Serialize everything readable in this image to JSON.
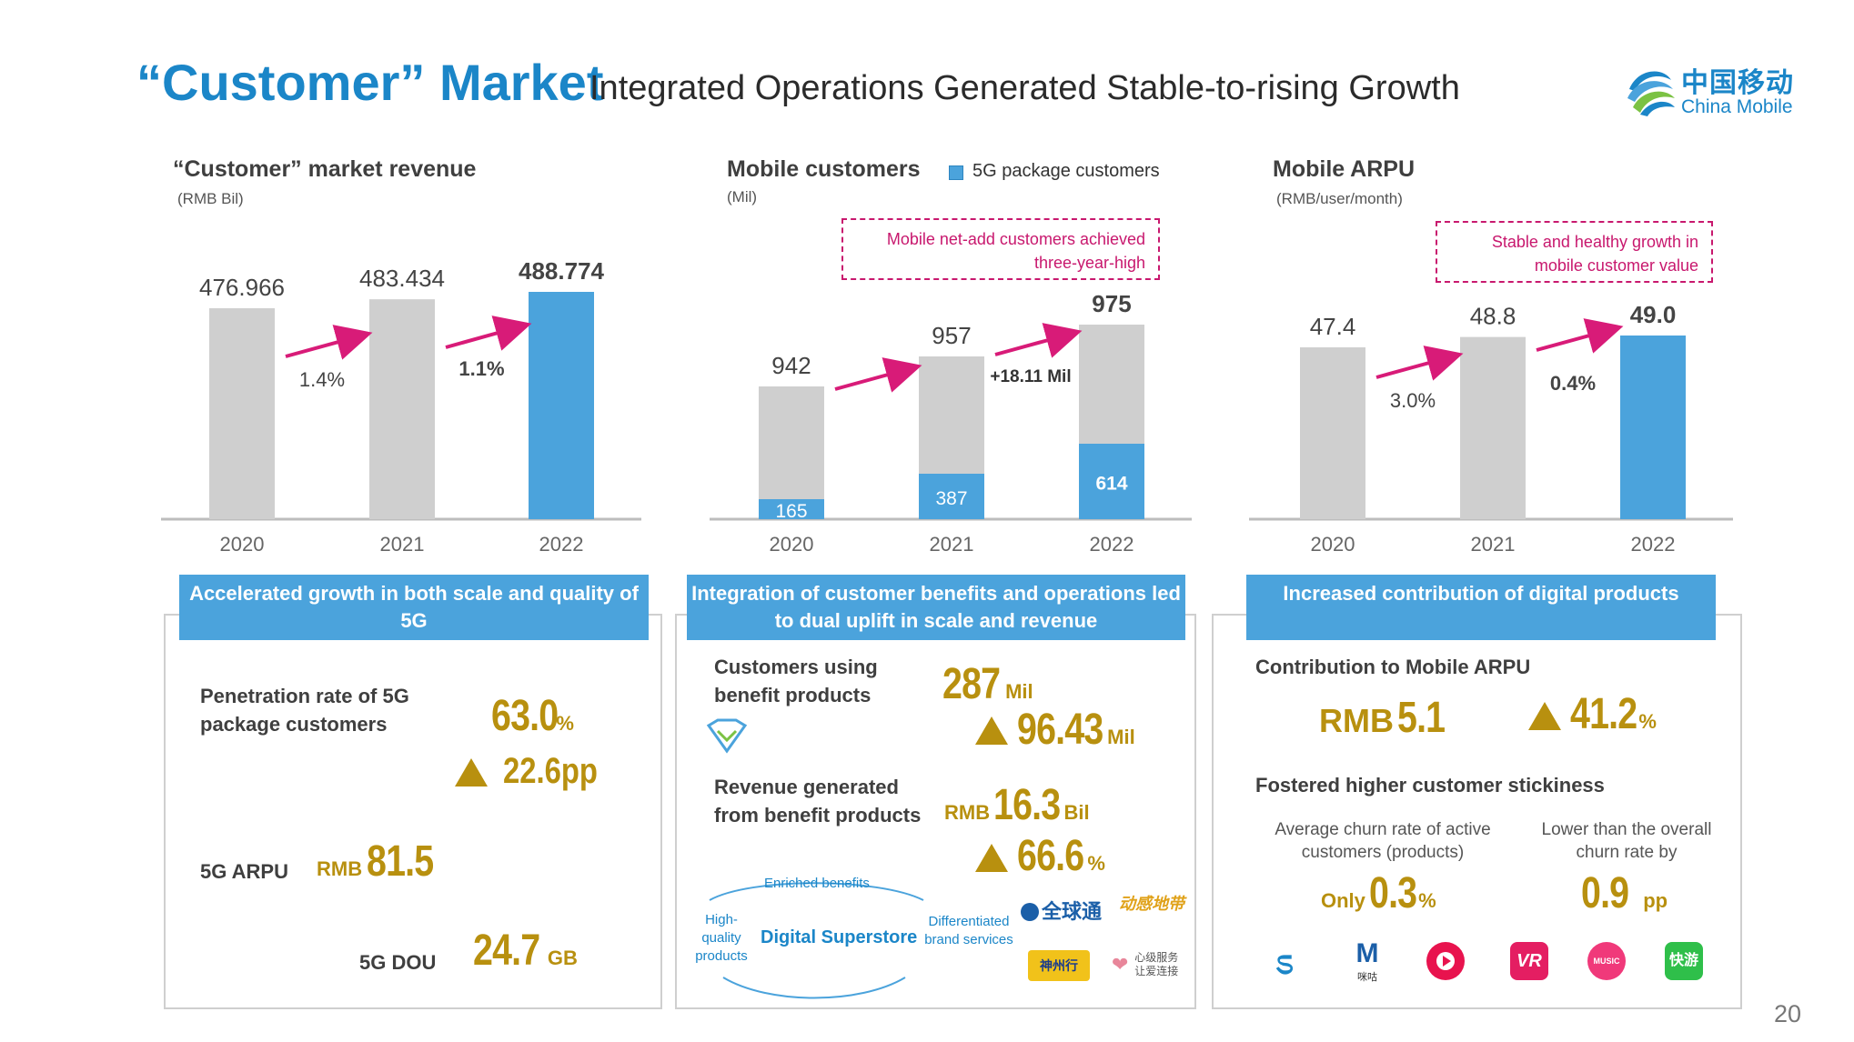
{
  "header": {
    "title_main": "“Customer” Market",
    "title_sub": "Integrated Operations Generated Stable-to-rising Growth",
    "logo_cn": "中国移动",
    "logo_en": "China Mobile"
  },
  "chart_data": [
    {
      "type": "bar",
      "title": "“Customer” market revenue",
      "unit": "(RMB Bil)",
      "categories": [
        "2020",
        "2021",
        "2022"
      ],
      "values": [
        476.966,
        483.434,
        488.774
      ],
      "value_labels": [
        "476.966",
        "483.434",
        "488.774"
      ],
      "growth_labels": [
        "1.4%",
        "1.1%"
      ],
      "highlight_index": 2
    },
    {
      "type": "bar",
      "title": "Mobile customers",
      "unit": "(Mil)",
      "legend": "5G package customers",
      "categories": [
        "2020",
        "2021",
        "2022"
      ],
      "series": [
        {
          "name": "Mobile customers",
          "values": [
            942,
            957,
            975
          ],
          "labels": [
            "942",
            "957",
            "975"
          ]
        },
        {
          "name": "5G package customers",
          "values": [
            165,
            387,
            614
          ],
          "labels": [
            "165",
            "387",
            "614"
          ]
        }
      ],
      "annotation": "+18.11 Mil",
      "callout": "Mobile net-add customers achieved three-year-high"
    },
    {
      "type": "bar",
      "title": "Mobile ARPU",
      "unit": "(RMB/user/month)",
      "categories": [
        "2020",
        "2021",
        "2022"
      ],
      "values": [
        47.4,
        48.8,
        49.0
      ],
      "value_labels": [
        "47.4",
        "48.8",
        "49.0"
      ],
      "growth_labels": [
        "3.0%",
        "0.4%"
      ],
      "highlight_index": 2,
      "callout": "Stable and healthy growth in mobile customer value"
    }
  ],
  "panel1": {
    "banner": "Accelerated growth in both scale and quality of 5G",
    "pen_label": "Penetration rate of 5G package customers",
    "pen_value": "63.0",
    "pen_unit": "%",
    "pen_growth": "22.6pp",
    "arpu_label": "5G ARPU",
    "arpu_prefix": "RMB",
    "arpu_value": "81.5",
    "dou_label": "5G DOU",
    "dou_value": "24.7",
    "dou_unit": "GB"
  },
  "panel2": {
    "banner": "Integration of customer benefits and operations led to dual uplift in scale and revenue",
    "cust_label": "Customers using benefit products",
    "cust_value": "287",
    "cust_unit": "Mil",
    "cust_growth": "96.43",
    "cust_growth_unit": "Mil",
    "rev_label": "Revenue generated from benefit products",
    "rev_prefix": "RMB",
    "rev_value": "16.3",
    "rev_unit": "Bil",
    "rev_growth": "66.6",
    "rev_growth_unit": "%",
    "diagram_top": "Enriched benefits",
    "diagram_left": "High-quality products",
    "diagram_center": "Digital Superstore",
    "diagram_right": "Differentiated brand services",
    "brand_qqt": "全球通",
    "brand_dzone": "动感地带",
    "brand_shenzhouxing": "神州行",
    "brand_service": "心级服务 让爱连接"
  },
  "panel3": {
    "banner": "Increased contribution of digital products",
    "contrib_label": "Contribution to Mobile ARPU",
    "contrib_prefix": "RMB",
    "contrib_value": "5.1",
    "contrib_growth": "41.2",
    "contrib_growth_unit": "%",
    "stick_label": "Fostered higher customer stickiness",
    "churn_desc": "Average churn rate of active customers (products)",
    "churn_prefix": "Only",
    "churn_value": "0.3",
    "churn_unit": "%",
    "lower_desc": "Lower than the overall churn rate by",
    "lower_value": "0.9",
    "lower_unit": "pp",
    "icon_migu_text": "咪咕",
    "icon_vr_text": "VR",
    "icon_music_text": "MUSIC",
    "icon_kuaiyou_text": "快游"
  },
  "colors": {
    "accent": "#1b86c8",
    "bar_blue": "#4ba3dc",
    "bar_gray": "#cfcfcf",
    "gold": "#b8900f",
    "magenta": "#c8186e"
  },
  "page_number": "20"
}
